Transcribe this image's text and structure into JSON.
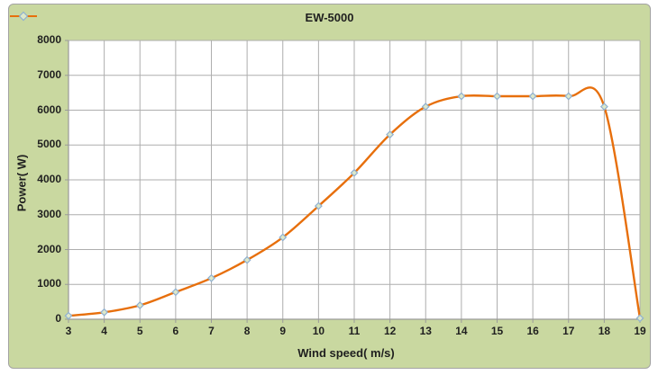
{
  "window": {
    "background": "#ffffff"
  },
  "frame": {
    "background": "#c9d8a0",
    "border_color": "#a3a3a3"
  },
  "legend": {
    "label": "EW-5000"
  },
  "chart_data": {
    "type": "line",
    "title": "",
    "xlabel": "Wind speed( m/s)",
    "ylabel": "Power( W)",
    "x": [
      3,
      4,
      5,
      6,
      7,
      8,
      9,
      10,
      11,
      12,
      13,
      14,
      15,
      16,
      17,
      18,
      19
    ],
    "series": [
      {
        "name": "EW-5000",
        "values": [
          100,
          200,
          400,
          780,
          1180,
          1700,
          2350,
          3250,
          4200,
          5300,
          6100,
          6400,
          6400,
          6400,
          6400,
          6100,
          30
        ]
      }
    ],
    "xticks": [
      3,
      4,
      5,
      6,
      7,
      8,
      9,
      10,
      11,
      12,
      13,
      14,
      15,
      16,
      17,
      18,
      19
    ],
    "yticks": [
      0,
      1000,
      2000,
      3000,
      4000,
      5000,
      6000,
      7000,
      8000
    ],
    "xlim": [
      3,
      19
    ],
    "ylim": [
      0,
      8000
    ],
    "grid": true,
    "legend_position": "top-center",
    "line_color": "#e76f0c",
    "marker": {
      "shape": "diamond",
      "stroke": "#8fb0d1",
      "fill": "#dde8c9"
    },
    "plot_background": "#ffffff",
    "gridline_color": "#aeaeae",
    "axis_color": "#9a9a9a",
    "text_color": "#1f1f1f"
  }
}
